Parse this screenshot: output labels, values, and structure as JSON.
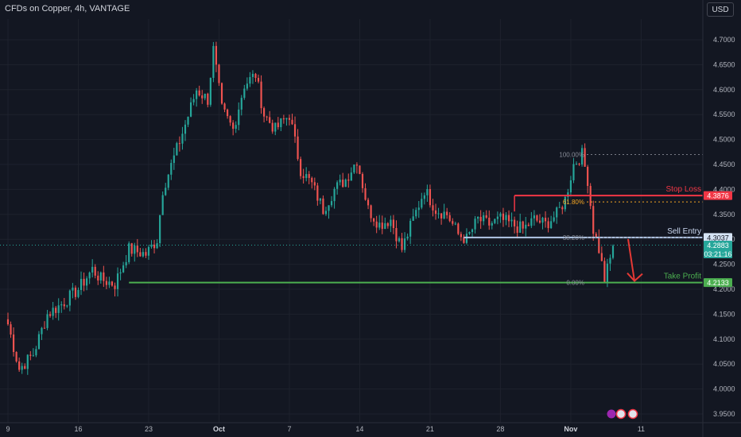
{
  "header": {
    "title": "CFDs on Copper, 4h, VANTAGE",
    "currency_button": "USD"
  },
  "colors": {
    "background": "#131722",
    "bull": "#26a69a",
    "bear": "#ef5350",
    "stop_loss": "#f23645",
    "entry": "#b2c8e8",
    "take_profit": "#4caf50",
    "fib_mid": "#f5a623",
    "arrow": "#e53935"
  },
  "chart_data": {
    "type": "candlestick",
    "y_axis": {
      "min": 3.95,
      "max": 4.72,
      "ticks": [
        "4.7000",
        "4.6500",
        "4.6000",
        "4.5500",
        "4.5000",
        "4.4500",
        "4.4000",
        "4.3500",
        "4.3000",
        "4.2500",
        "4.2000",
        "4.1500",
        "4.1000",
        "4.0500",
        "4.0000",
        "3.9500"
      ],
      "tick_values": [
        4.7,
        4.65,
        4.6,
        4.55,
        4.5,
        4.45,
        4.4,
        4.35,
        4.3,
        4.25,
        4.2,
        4.15,
        4.1,
        4.05,
        4.0,
        3.95
      ]
    },
    "x_axis": {
      "labels": [
        "9",
        "16",
        "23",
        "Oct",
        "7",
        "14",
        "21",
        "28",
        "Nov",
        "11"
      ],
      "bold": [
        "Oct",
        "Nov"
      ],
      "label_bar_index": [
        0,
        25,
        50,
        75,
        100,
        125,
        150,
        175,
        200,
        225
      ]
    },
    "anchors": [
      {
        "i": 0,
        "p": 4.13
      },
      {
        "i": 4,
        "p": 4.04
      },
      {
        "i": 9,
        "p": 4.07
      },
      {
        "i": 14,
        "p": 4.15
      },
      {
        "i": 19,
        "p": 4.17
      },
      {
        "i": 25,
        "p": 4.2
      },
      {
        "i": 30,
        "p": 4.24
      },
      {
        "i": 33,
        "p": 4.22
      },
      {
        "i": 38,
        "p": 4.21
      },
      {
        "i": 43,
        "p": 4.28
      },
      {
        "i": 49,
        "p": 4.27
      },
      {
        "i": 53,
        "p": 4.3
      },
      {
        "i": 55,
        "p": 4.4
      },
      {
        "i": 60,
        "p": 4.48
      },
      {
        "i": 63,
        "p": 4.53
      },
      {
        "i": 67,
        "p": 4.6
      },
      {
        "i": 71,
        "p": 4.58
      },
      {
        "i": 73,
        "p": 4.68
      },
      {
        "i": 76,
        "p": 4.56
      },
      {
        "i": 80,
        "p": 4.52
      },
      {
        "i": 84,
        "p": 4.61
      },
      {
        "i": 88,
        "p": 4.63
      },
      {
        "i": 91,
        "p": 4.55
      },
      {
        "i": 95,
        "p": 4.52
      },
      {
        "i": 100,
        "p": 4.55
      },
      {
        "i": 104,
        "p": 4.44
      },
      {
        "i": 108,
        "p": 4.41
      },
      {
        "i": 112,
        "p": 4.36
      },
      {
        "i": 116,
        "p": 4.4
      },
      {
        "i": 120,
        "p": 4.42
      },
      {
        "i": 124,
        "p": 4.46
      },
      {
        "i": 128,
        "p": 4.36
      },
      {
        "i": 132,
        "p": 4.33
      },
      {
        "i": 136,
        "p": 4.34
      },
      {
        "i": 140,
        "p": 4.28
      },
      {
        "i": 144,
        "p": 4.34
      },
      {
        "i": 148,
        "p": 4.4
      },
      {
        "i": 152,
        "p": 4.36
      },
      {
        "i": 156,
        "p": 4.35
      },
      {
        "i": 160,
        "p": 4.31
      },
      {
        "i": 163,
        "p": 4.3
      },
      {
        "i": 167,
        "p": 4.34
      },
      {
        "i": 171,
        "p": 4.33
      },
      {
        "i": 175,
        "p": 4.34
      },
      {
        "i": 179,
        "p": 4.33
      },
      {
        "i": 183,
        "p": 4.32
      },
      {
        "i": 187,
        "p": 4.34
      },
      {
        "i": 191,
        "p": 4.33
      },
      {
        "i": 195,
        "p": 4.35
      },
      {
        "i": 198,
        "p": 4.38
      },
      {
        "i": 201,
        "p": 4.45
      },
      {
        "i": 204,
        "p": 4.47
      },
      {
        "i": 206,
        "p": 4.42
      },
      {
        "i": 208,
        "p": 4.32
      },
      {
        "i": 210,
        "p": 4.28
      },
      {
        "i": 212,
        "p": 4.22
      },
      {
        "i": 214,
        "p": 4.26
      },
      {
        "i": 215,
        "p": 4.29
      }
    ],
    "num_bars": 216,
    "levels": {
      "stop_loss": {
        "label": "Stop Loss",
        "price": 4.3876,
        "tag": "4.3876",
        "from_bar": 180
      },
      "sell_entry": {
        "label": "Sell Entry",
        "price": 4.3037,
        "tag": "4.3037",
        "from_bar": 162
      },
      "take_profit": {
        "label": "Take Profit",
        "price": 4.2133,
        "tag": "4.2133",
        "from_bar": 43
      },
      "current": {
        "price": 4.2883,
        "tag": "4.2883",
        "countdown": "03:21:16"
      }
    },
    "fibonacci": [
      {
        "label": "100.00%",
        "price": 4.47
      },
      {
        "label": "61.80%",
        "price": 4.375
      },
      {
        "label": "38.20%",
        "price": 4.3037
      },
      {
        "label": "0.00%",
        "price": 4.2133
      }
    ]
  }
}
